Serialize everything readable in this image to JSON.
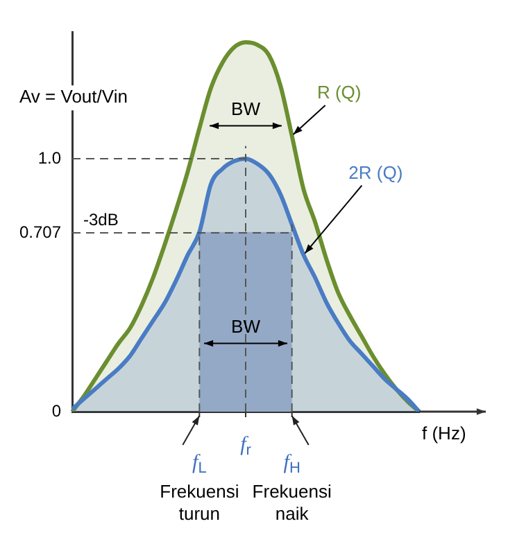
{
  "chart_data": {
    "type": "area",
    "ylabel": "Av = Vout/Vin",
    "xlabel": "f (Hz)",
    "categories": [
      null,
      null,
      null,
      null,
      null,
      null,
      null,
      null,
      null,
      null,
      null,
      "f$_{L}$",
      null,
      null,
      null,
      "f$_{r}$",
      null,
      null,
      null,
      "f$_{H}$",
      null,
      null,
      null,
      null,
      null,
      null,
      null,
      null,
      null,
      null,
      null
    ],
    "series": [
      {
        "name": "R (Q)",
        "color": "#6b8e2f",
        "values": [
          0,
          0.06,
          0.13,
          0.2,
          0.27,
          0.33,
          0.42,
          0.53,
          0.66,
          0.8,
          0.95,
          1.12,
          1.28,
          1.38,
          1.44,
          1.46,
          1.45,
          1.41,
          1.29,
          1.09,
          0.88,
          0.75,
          0.6,
          0.47,
          0.38,
          0.3,
          0.22,
          0.15,
          0.09,
          0.04,
          0
        ]
      },
      {
        "name": "2R (Q)",
        "color": "#4a7cc4",
        "values": [
          0.01,
          0.05,
          0.09,
          0.13,
          0.17,
          0.22,
          0.29,
          0.36,
          0.43,
          0.52,
          0.62,
          0.71,
          0.9,
          0.96,
          0.99,
          1,
          0.98,
          0.94,
          0.86,
          0.74,
          0.62,
          0.53,
          0.43,
          0.35,
          0.28,
          0.23,
          0.18,
          0.13,
          0.09,
          0.05,
          0
        ]
      }
    ],
    "ylim": [
      0,
      1.5
    ],
    "yticks": [
      0,
      0.707,
      {
        "value": 1,
        "label": "1.0"
      }
    ],
    "ref_lines": [
      {
        "axis": "y",
        "value": 1,
        "line_style": "dashed",
        "color": "#555555"
      },
      {
        "axis": "y",
        "value": 0.707,
        "label": "-3dB",
        "line_style": "dashed",
        "color": "#555555"
      },
      {
        "axis": "x",
        "value": "f$_{L}$",
        "line_style": "dashed",
        "color": "#555555"
      },
      {
        "axis": "x",
        "value": "f$_{r}$",
        "line_style": "dashed",
        "color": "#555555"
      },
      {
        "axis": "x",
        "value": "f$_{H}$",
        "line_style": "dashed",
        "color": "#555555"
      }
    ],
    "bands": [
      {
        "axis": "x",
        "from": "f$_{L}$",
        "to": "f$_{H}$",
        "color": "#b4bfe2"
      }
    ],
    "annotations": [
      "BW",
      {
        "text": "BW",
        "x": "f$_{r}$",
        "y": 0.27
      },
      "Frekuensi turun",
      "Frekuensi naik"
    ],
    "marker": "none",
    "line_style": "solid",
    "grid": false,
    "legend": false
  }
}
